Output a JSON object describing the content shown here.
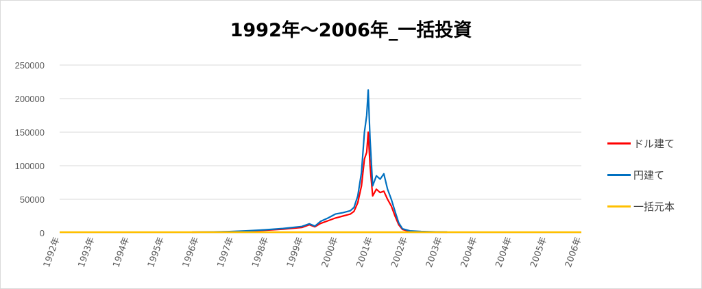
{
  "chart_data": {
    "type": "line",
    "title": "1992年～2006年_一括投資",
    "xlabel": "",
    "ylabel": "",
    "ylim": [
      0,
      250000
    ],
    "yticks": [
      "0",
      "50000",
      "100000",
      "150000",
      "200000",
      "250000"
    ],
    "xticks": [
      "1992年",
      "1993年",
      "1994年",
      "1995年",
      "1996年",
      "1997年",
      "1998年",
      "1999年",
      "2000年",
      "2001年",
      "2002年",
      "2003年",
      "2004年",
      "2004年",
      "2005年",
      "2006年"
    ],
    "grid": true,
    "legend": "right",
    "series": [
      {
        "name": "ドル建て",
        "color": "#ff0000",
        "points": [
          [
            1995.55,
            1000
          ],
          [
            1996.0,
            1200
          ],
          [
            1996.5,
            1500
          ],
          [
            1997.0,
            2500
          ],
          [
            1997.5,
            3800
          ],
          [
            1998.0,
            5500
          ],
          [
            1998.5,
            8000
          ],
          [
            1998.7,
            12000
          ],
          [
            1998.85,
            9000
          ],
          [
            1999.0,
            14000
          ],
          [
            1999.2,
            18000
          ],
          [
            1999.4,
            22000
          ],
          [
            1999.6,
            25000
          ],
          [
            1999.8,
            28000
          ],
          [
            1999.9,
            32000
          ],
          [
            2000.0,
            45000
          ],
          [
            2000.1,
            70000
          ],
          [
            2000.18,
            110000
          ],
          [
            2000.24,
            120000
          ],
          [
            2000.28,
            150000
          ],
          [
            2000.33,
            100000
          ],
          [
            2000.4,
            55000
          ],
          [
            2000.5,
            65000
          ],
          [
            2000.6,
            60000
          ],
          [
            2000.7,
            62000
          ],
          [
            2000.8,
            50000
          ],
          [
            2000.9,
            40000
          ],
          [
            2001.0,
            25000
          ],
          [
            2001.1,
            12000
          ],
          [
            2001.2,
            5000
          ],
          [
            2001.4,
            2000
          ],
          [
            2001.7,
            1500
          ],
          [
            2002.0,
            1200
          ],
          [
            2002.4,
            1000
          ]
        ]
      },
      {
        "name": "円建て",
        "color": "#0070c0",
        "points": [
          [
            1995.55,
            1000
          ],
          [
            1996.0,
            1300
          ],
          [
            1996.5,
            1800
          ],
          [
            1997.0,
            3000
          ],
          [
            1997.5,
            4500
          ],
          [
            1998.0,
            6500
          ],
          [
            1998.5,
            9500
          ],
          [
            1998.7,
            13500
          ],
          [
            1998.85,
            10000
          ],
          [
            1999.0,
            17000
          ],
          [
            1999.2,
            22000
          ],
          [
            1999.4,
            28000
          ],
          [
            1999.6,
            30000
          ],
          [
            1999.8,
            33000
          ],
          [
            1999.9,
            38000
          ],
          [
            2000.0,
            55000
          ],
          [
            2000.1,
            90000
          ],
          [
            2000.18,
            150000
          ],
          [
            2000.24,
            175000
          ],
          [
            2000.28,
            213000
          ],
          [
            2000.33,
            140000
          ],
          [
            2000.4,
            70000
          ],
          [
            2000.5,
            85000
          ],
          [
            2000.6,
            80000
          ],
          [
            2000.7,
            88000
          ],
          [
            2000.8,
            65000
          ],
          [
            2000.9,
            50000
          ],
          [
            2001.0,
            32000
          ],
          [
            2001.1,
            15000
          ],
          [
            2001.2,
            6000
          ],
          [
            2001.4,
            3000
          ],
          [
            2001.7,
            2000
          ],
          [
            2002.0,
            1500
          ],
          [
            2002.4,
            1300
          ]
        ]
      },
      {
        "name": "一括元本",
        "color": "#ffc000",
        "points": [
          [
            1992.0,
            1000
          ],
          [
            2006.0,
            1000
          ]
        ]
      }
    ]
  }
}
